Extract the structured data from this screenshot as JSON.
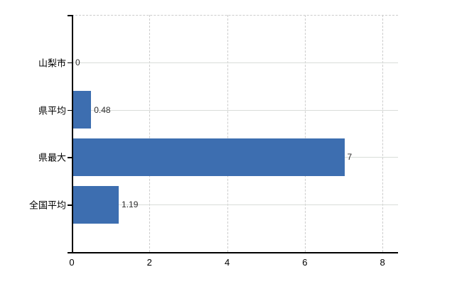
{
  "chart_data": {
    "type": "bar",
    "orientation": "horizontal",
    "title": "",
    "xlabel": "",
    "ylabel": "",
    "categories": [
      "山梨市",
      "県平均",
      "県最大",
      "全国平均"
    ],
    "values": [
      0,
      0.48,
      7,
      1.19
    ],
    "value_labels": [
      "0",
      "0.48",
      "7",
      "1.19"
    ],
    "xticks": [
      0,
      2,
      4,
      6,
      8
    ],
    "xtick_labels": [
      "0",
      "2",
      "4",
      "6",
      "8"
    ],
    "xlim": [
      0,
      8.4
    ],
    "grid": true,
    "legend": false,
    "colors": {
      "bar": "#3d6eb0",
      "h_gridline": "#d9ddd9",
      "v_gridline": "#cccccc",
      "axis": "#000000",
      "category_text": "#000000",
      "value_text": "#2e2e2e",
      "background": "#ffffff"
    }
  }
}
